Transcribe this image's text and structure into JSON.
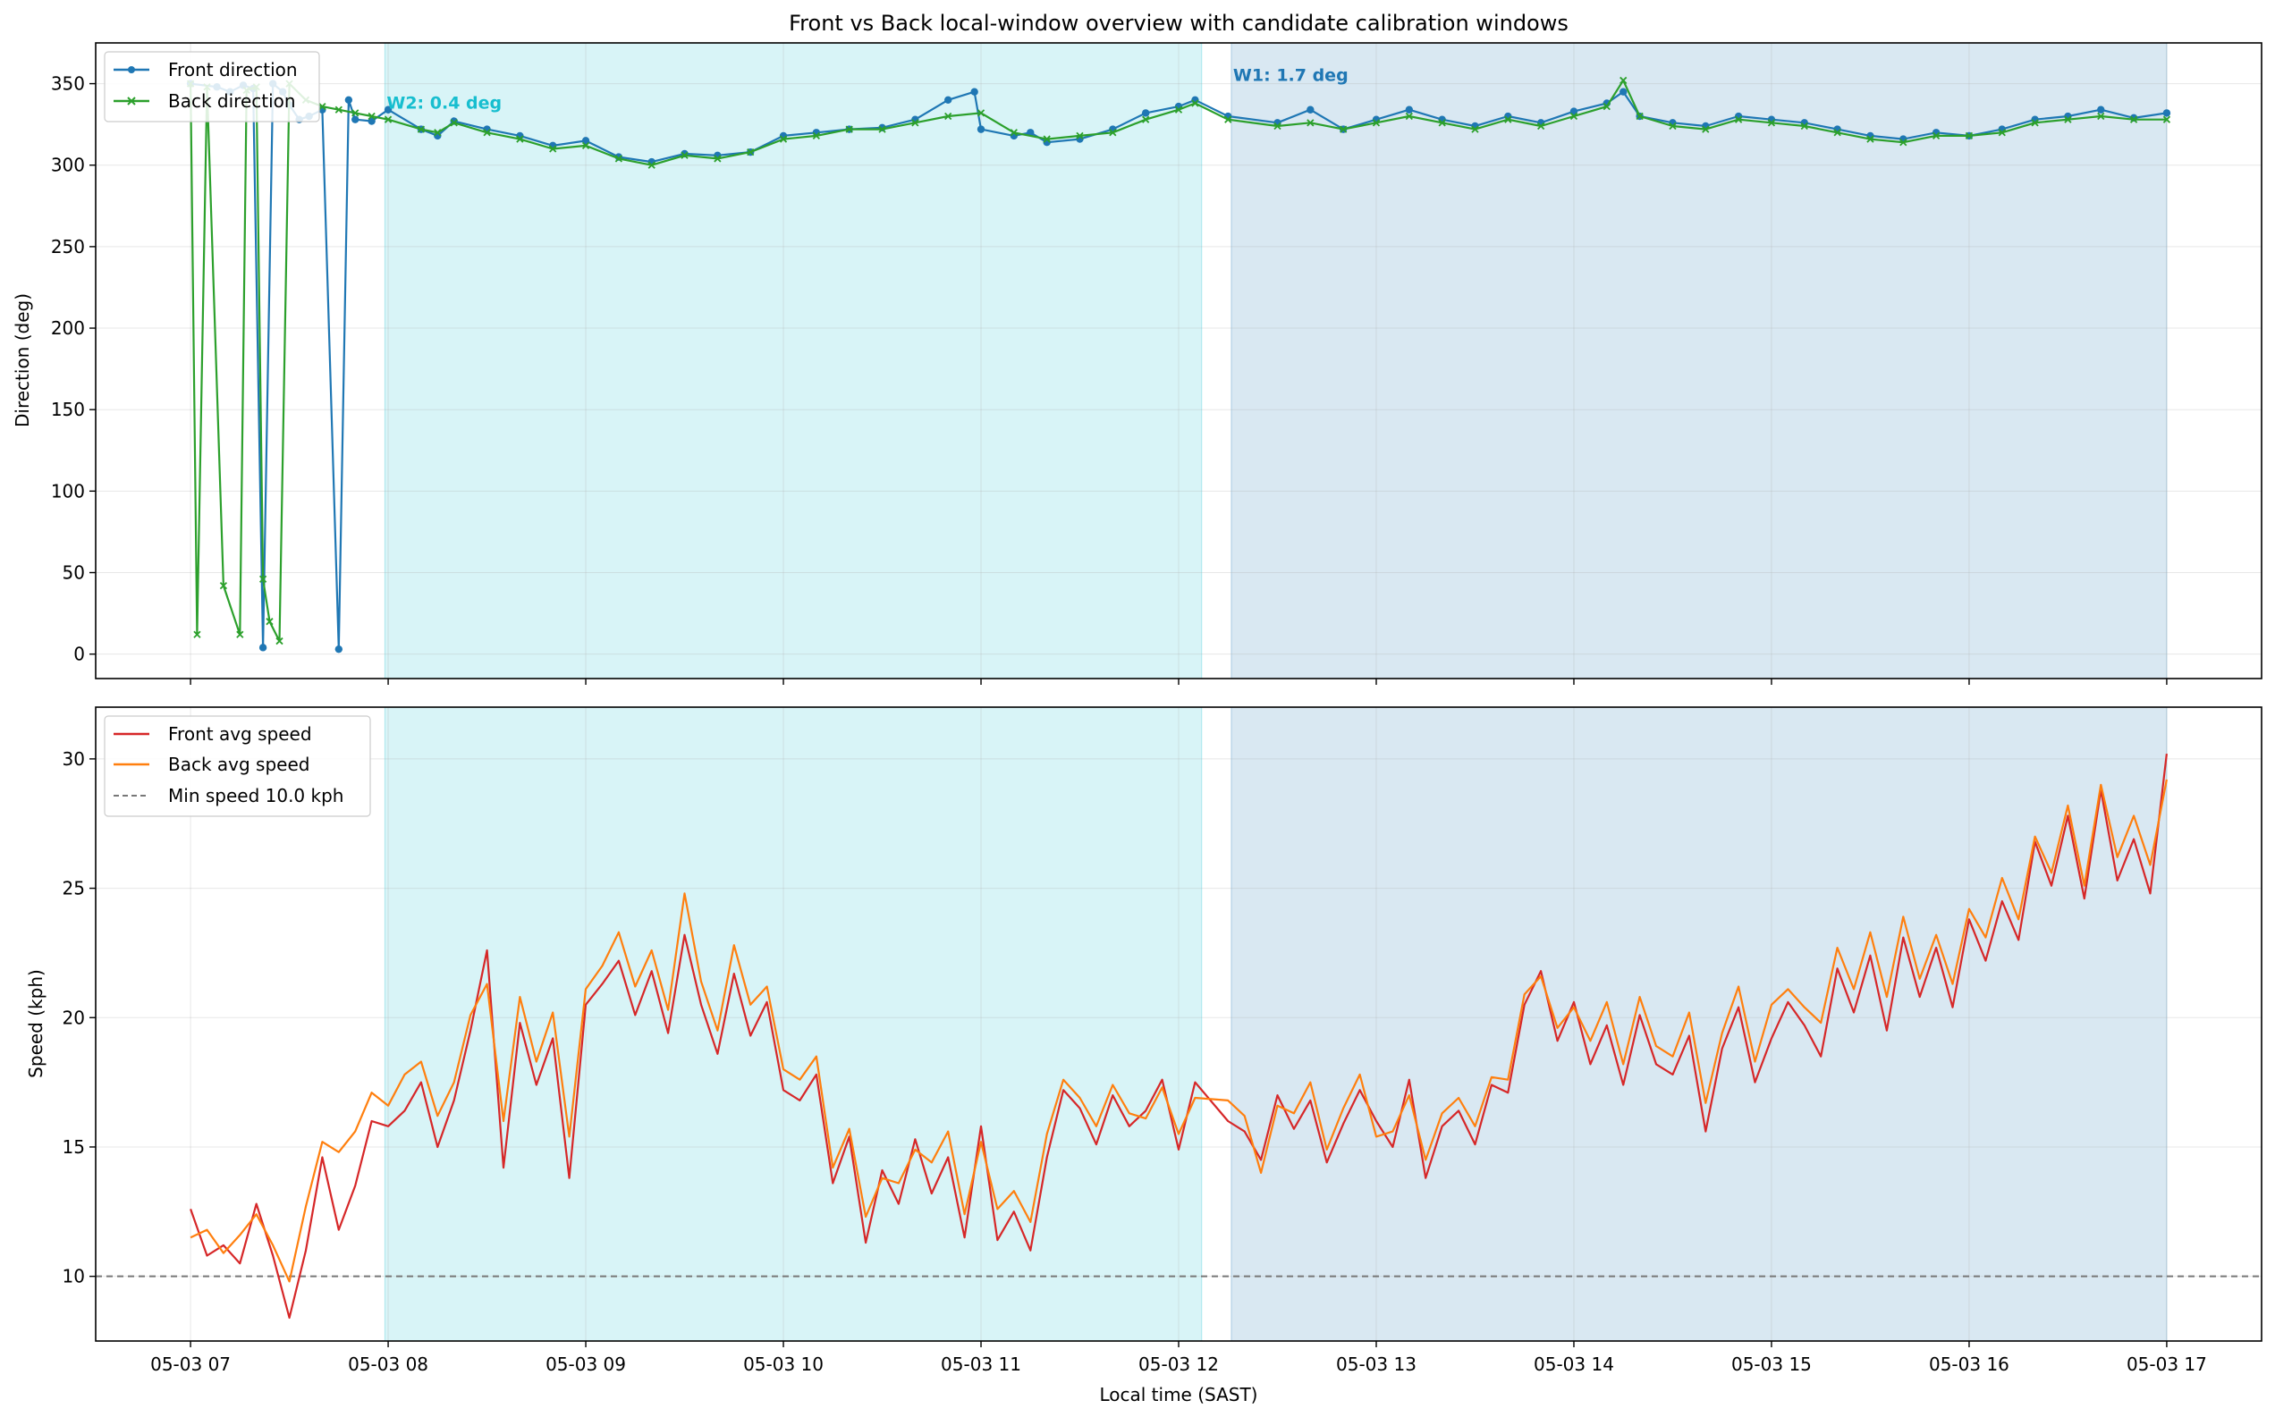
{
  "chart_data": [
    {
      "type": "line",
      "title": "Front vs Back local-window overview with candidate calibration windows",
      "ylabel": "Direction (deg)",
      "ylim": [
        -15,
        375
      ],
      "yticks": [
        0,
        50,
        100,
        150,
        200,
        250,
        300,
        350
      ],
      "xlim_hours": [
        6.52,
        17.48
      ],
      "grid": true,
      "legend_position": "upper left",
      "shaded_windows": [
        {
          "label": "W2: 0.4 deg",
          "start": "05-03 07:59",
          "end": "05-03 12:07",
          "color": "#17becf"
        },
        {
          "label": "W1: 1.7 deg",
          "start": "05-03 12:16",
          "end": "05-03 17:00",
          "color": "#1f77b4"
        }
      ],
      "series": [
        {
          "name": "Front direction",
          "color": "#1f77b4",
          "marker": "circle",
          "x": [
            "07:00",
            "07:08",
            "07:12",
            "07:16",
            "07:19",
            "07:22",
            "07:25",
            "07:28",
            "07:30",
            "07:33",
            "07:36",
            "07:40",
            "07:45",
            "07:48",
            "07:50",
            "07:55",
            "08:00",
            "08:10",
            "08:15",
            "08:20",
            "08:30",
            "08:40",
            "08:50",
            "09:00",
            "09:10",
            "09:20",
            "09:30",
            "09:40",
            "09:50",
            "10:00",
            "10:10",
            "10:20",
            "10:30",
            "10:40",
            "10:50",
            "10:58",
            "11:00",
            "11:10",
            "11:15",
            "11:20",
            "11:30",
            "11:40",
            "11:50",
            "12:00",
            "12:05",
            "12:15",
            "12:30",
            "12:40",
            "12:50",
            "13:00",
            "13:10",
            "13:20",
            "13:30",
            "13:40",
            "13:50",
            "14:00",
            "14:10",
            "14:15",
            "14:20",
            "14:30",
            "14:40",
            "14:50",
            "15:00",
            "15:10",
            "15:20",
            "15:30",
            "15:40",
            "15:50",
            "16:00",
            "16:10",
            "16:20",
            "16:30",
            "16:40",
            "16:50",
            "17:00"
          ],
          "y": [
            350,
            348,
            345,
            349,
            347,
            4,
            350,
            345,
            337,
            328,
            330,
            334,
            3,
            340,
            328,
            327,
            334,
            322,
            318,
            327,
            322,
            318,
            312,
            315,
            305,
            302,
            307,
            306,
            308,
            318,
            320,
            322,
            323,
            328,
            340,
            345,
            322,
            318,
            320,
            314,
            316,
            322,
            332,
            336,
            340,
            330,
            326,
            334,
            322,
            328,
            334,
            328,
            324,
            330,
            326,
            333,
            338,
            345,
            330,
            326,
            324,
            330,
            328,
            326,
            322,
            318,
            316,
            320,
            318,
            322,
            328,
            330,
            334,
            329,
            332
          ]
        },
        {
          "name": "Back direction",
          "color": "#2ca02c",
          "marker": "x",
          "x": [
            "07:00",
            "07:02",
            "07:05",
            "07:10",
            "07:15",
            "07:17",
            "07:20",
            "07:22",
            "07:24",
            "07:27",
            "07:30",
            "07:35",
            "07:40",
            "07:45",
            "07:50",
            "07:55",
            "08:00",
            "08:10",
            "08:15",
            "08:20",
            "08:30",
            "08:40",
            "08:50",
            "09:00",
            "09:10",
            "09:20",
            "09:30",
            "09:40",
            "09:50",
            "10:00",
            "10:10",
            "10:20",
            "10:30",
            "10:40",
            "10:50",
            "11:00",
            "11:10",
            "11:20",
            "11:30",
            "11:40",
            "11:50",
            "12:00",
            "12:05",
            "12:15",
            "12:30",
            "12:40",
            "12:50",
            "13:00",
            "13:10",
            "13:20",
            "13:30",
            "13:40",
            "13:50",
            "14:00",
            "14:10",
            "14:15",
            "14:20",
            "14:30",
            "14:40",
            "14:50",
            "15:00",
            "15:10",
            "15:20",
            "15:30",
            "15:40",
            "15:50",
            "16:00",
            "16:10",
            "16:20",
            "16:30",
            "16:40",
            "16:50",
            "17:00"
          ],
          "y": [
            350,
            12,
            348,
            42,
            12,
            346,
            348,
            46,
            20,
            8,
            350,
            340,
            336,
            334,
            332,
            330,
            328,
            322,
            320,
            326,
            320,
            316,
            310,
            312,
            304,
            300,
            306,
            304,
            308,
            316,
            318,
            322,
            322,
            326,
            330,
            332,
            320,
            316,
            318,
            320,
            328,
            334,
            338,
            328,
            324,
            326,
            322,
            326,
            330,
            326,
            322,
            328,
            324,
            330,
            336,
            352,
            330,
            324,
            322,
            328,
            326,
            324,
            320,
            316,
            314,
            318,
            318,
            320,
            326,
            328,
            330,
            328,
            328
          ]
        }
      ]
    },
    {
      "type": "line",
      "xlabel": "Local time (SAST)",
      "ylabel": "Speed (kph)",
      "ylim": [
        7.5,
        32
      ],
      "yticks": [
        10,
        15,
        20,
        25,
        30
      ],
      "xlim_hours": [
        6.52,
        17.48
      ],
      "xtick_labels": [
        "05-03 07",
        "05-03 08",
        "05-03 09",
        "05-03 10",
        "05-03 11",
        "05-03 12",
        "05-03 13",
        "05-03 14",
        "05-03 15",
        "05-03 16",
        "05-03 17"
      ],
      "grid": true,
      "legend_position": "upper left",
      "shaded_windows": [
        {
          "start": "05-03 07:59",
          "end": "05-03 12:07",
          "color": "#17becf"
        },
        {
          "start": "05-03 12:16",
          "end": "05-03 17:00",
          "color": "#1f77b4"
        }
      ],
      "reference_lines": [
        {
          "name": "Min speed 10.0 kph",
          "y": 10.0,
          "color": "#777777",
          "style": "dashed"
        }
      ],
      "series": [
        {
          "name": "Front avg speed",
          "color": "#d62728",
          "x": [
            "07:00",
            "07:05",
            "07:10",
            "07:15",
            "07:20",
            "07:25",
            "07:30",
            "07:35",
            "07:40",
            "07:45",
            "07:50",
            "07:55",
            "08:00",
            "08:05",
            "08:10",
            "08:15",
            "08:20",
            "08:25",
            "08:30",
            "08:35",
            "08:40",
            "08:45",
            "08:50",
            "08:55",
            "09:00",
            "09:05",
            "09:10",
            "09:15",
            "09:20",
            "09:25",
            "09:30",
            "09:35",
            "09:40",
            "09:45",
            "09:50",
            "09:55",
            "10:00",
            "10:05",
            "10:10",
            "10:15",
            "10:20",
            "10:25",
            "10:30",
            "10:35",
            "10:40",
            "10:45",
            "10:50",
            "10:55",
            "11:00",
            "11:05",
            "11:10",
            "11:15",
            "11:20",
            "11:25",
            "11:30",
            "11:35",
            "11:40",
            "11:45",
            "11:50",
            "11:55",
            "12:00",
            "12:05",
            "12:15",
            "12:20",
            "12:25",
            "12:30",
            "12:35",
            "12:40",
            "12:45",
            "12:50",
            "12:55",
            "13:00",
            "13:05",
            "13:10",
            "13:15",
            "13:20",
            "13:25",
            "13:30",
            "13:35",
            "13:40",
            "13:45",
            "13:50",
            "13:55",
            "14:00",
            "14:05",
            "14:10",
            "14:15",
            "14:20",
            "14:25",
            "14:30",
            "14:35",
            "14:40",
            "14:45",
            "14:50",
            "14:55",
            "15:00",
            "15:05",
            "15:10",
            "15:15",
            "15:20",
            "15:25",
            "15:30",
            "15:35",
            "15:40",
            "15:45",
            "15:50",
            "15:55",
            "16:00",
            "16:05",
            "16:10",
            "16:15",
            "16:20",
            "16:25",
            "16:30",
            "16:35",
            "16:40",
            "16:45",
            "16:50",
            "16:55",
            "17:00"
          ],
          "y": [
            12.6,
            10.8,
            11.2,
            10.5,
            12.8,
            10.8,
            8.4,
            11.0,
            14.6,
            11.8,
            13.5,
            16.0,
            15.8,
            16.4,
            17.5,
            15.0,
            16.8,
            19.5,
            22.6,
            14.2,
            19.8,
            17.4,
            19.2,
            13.8,
            20.5,
            21.3,
            22.2,
            20.1,
            21.8,
            19.4,
            23.2,
            20.5,
            18.6,
            21.7,
            19.3,
            20.6,
            17.2,
            16.8,
            17.8,
            13.6,
            15.4,
            11.3,
            14.1,
            12.8,
            15.3,
            13.2,
            14.6,
            11.5,
            15.8,
            11.4,
            12.5,
            11.0,
            14.6,
            17.2,
            16.5,
            15.1,
            17.0,
            15.8,
            16.4,
            17.6,
            14.9,
            17.5,
            16.0,
            15.6,
            14.5,
            17.0,
            15.7,
            16.8,
            14.4,
            15.9,
            17.2,
            16.0,
            15.0,
            17.6,
            13.8,
            15.8,
            16.4,
            15.1,
            17.4,
            17.1,
            20.5,
            21.8,
            19.1,
            20.6,
            18.2,
            19.7,
            17.4,
            20.1,
            18.2,
            17.8,
            19.3,
            15.6,
            18.8,
            20.4,
            17.5,
            19.2,
            20.6,
            19.7,
            18.5,
            21.9,
            20.2,
            22.4,
            19.5,
            23.1,
            20.8,
            22.7,
            20.4,
            23.8,
            22.2,
            24.5,
            23.0,
            26.8,
            25.1,
            27.8,
            24.6,
            28.8,
            25.3,
            26.9,
            24.8,
            30.2
          ]
        },
        {
          "name": "Back avg speed",
          "color": "#ff7f0e",
          "x": [
            "07:00",
            "07:05",
            "07:10",
            "07:15",
            "07:20",
            "07:25",
            "07:30",
            "07:35",
            "07:40",
            "07:45",
            "07:50",
            "07:55",
            "08:00",
            "08:05",
            "08:10",
            "08:15",
            "08:20",
            "08:25",
            "08:30",
            "08:35",
            "08:40",
            "08:45",
            "08:50",
            "08:55",
            "09:00",
            "09:05",
            "09:10",
            "09:15",
            "09:20",
            "09:25",
            "09:30",
            "09:35",
            "09:40",
            "09:45",
            "09:50",
            "09:55",
            "10:00",
            "10:05",
            "10:10",
            "10:15",
            "10:20",
            "10:25",
            "10:30",
            "10:35",
            "10:40",
            "10:45",
            "10:50",
            "10:55",
            "11:00",
            "11:05",
            "11:10",
            "11:15",
            "11:20",
            "11:25",
            "11:30",
            "11:35",
            "11:40",
            "11:45",
            "11:50",
            "11:55",
            "12:00",
            "12:05",
            "12:15",
            "12:20",
            "12:25",
            "12:30",
            "12:35",
            "12:40",
            "12:45",
            "12:50",
            "12:55",
            "13:00",
            "13:05",
            "13:10",
            "13:15",
            "13:20",
            "13:25",
            "13:30",
            "13:35",
            "13:40",
            "13:45",
            "13:50",
            "13:55",
            "14:00",
            "14:05",
            "14:10",
            "14:15",
            "14:20",
            "14:25",
            "14:30",
            "14:35",
            "14:40",
            "14:45",
            "14:50",
            "14:55",
            "15:00",
            "15:05",
            "15:10",
            "15:15",
            "15:20",
            "15:25",
            "15:30",
            "15:35",
            "15:40",
            "15:45",
            "15:50",
            "15:55",
            "16:00",
            "16:05",
            "16:10",
            "16:15",
            "16:20",
            "16:25",
            "16:30",
            "16:35",
            "16:40",
            "16:45",
            "16:50",
            "16:55",
            "17:00"
          ],
          "y": [
            11.5,
            11.8,
            10.9,
            11.6,
            12.4,
            11.2,
            9.8,
            12.7,
            15.2,
            14.8,
            15.6,
            17.1,
            16.6,
            17.8,
            18.3,
            16.2,
            17.5,
            20.1,
            21.3,
            16.0,
            20.8,
            18.3,
            20.2,
            15.4,
            21.1,
            22.0,
            23.3,
            21.2,
            22.6,
            20.3,
            24.8,
            21.4,
            19.5,
            22.8,
            20.5,
            21.2,
            18.0,
            17.6,
            18.5,
            14.2,
            15.7,
            12.3,
            13.8,
            13.6,
            14.9,
            14.4,
            15.6,
            12.4,
            15.2,
            12.6,
            13.3,
            12.1,
            15.5,
            17.6,
            16.9,
            15.8,
            17.4,
            16.3,
            16.1,
            17.3,
            15.5,
            16.9,
            16.8,
            16.2,
            14.0,
            16.6,
            16.3,
            17.5,
            14.9,
            16.5,
            17.8,
            15.4,
            15.6,
            17.0,
            14.5,
            16.3,
            16.9,
            15.8,
            17.7,
            17.6,
            20.9,
            21.6,
            19.6,
            20.4,
            19.1,
            20.6,
            18.2,
            20.8,
            18.9,
            18.5,
            20.2,
            16.7,
            19.4,
            21.2,
            18.3,
            20.5,
            21.1,
            20.4,
            19.8,
            22.7,
            21.1,
            23.3,
            20.8,
            23.9,
            21.5,
            23.2,
            21.3,
            24.2,
            23.1,
            25.4,
            23.8,
            27.0,
            25.6,
            28.2,
            25.1,
            29.0,
            26.2,
            27.8,
            25.9,
            29.2
          ]
        }
      ]
    }
  ]
}
